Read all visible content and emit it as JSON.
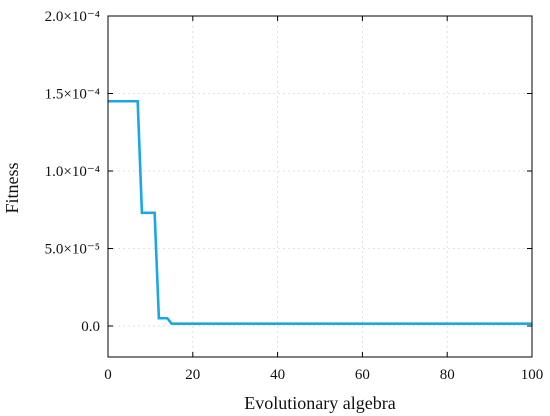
{
  "chart_data": {
    "type": "line",
    "xlabel": "Evolutionary algebra",
    "ylabel": "Fitness",
    "xlim": [
      0,
      100
    ],
    "ylim": [
      -2e-05,
      0.0002
    ],
    "grid": true,
    "x_ticks": [
      0,
      20,
      40,
      60,
      80,
      100
    ],
    "x_tick_labels": [
      "0",
      "20",
      "40",
      "60",
      "80",
      "100"
    ],
    "y_ticks": [
      0,
      5e-05,
      0.0001,
      0.00015,
      0.0002
    ],
    "y_tick_labels": [
      "0.0",
      "5.0×10⁻⁵",
      "1.0×10⁻⁴",
      "1.5×10⁻⁴",
      "2.0×10⁻⁴"
    ],
    "series": [
      {
        "color": "#1aa7e8",
        "x": [
          0,
          7,
          8,
          11,
          12,
          14,
          15,
          100
        ],
        "y": [
          0.000145,
          0.000145,
          7.3e-05,
          7.3e-05,
          5e-06,
          5e-06,
          1.5e-06,
          1.5e-06
        ]
      }
    ]
  }
}
